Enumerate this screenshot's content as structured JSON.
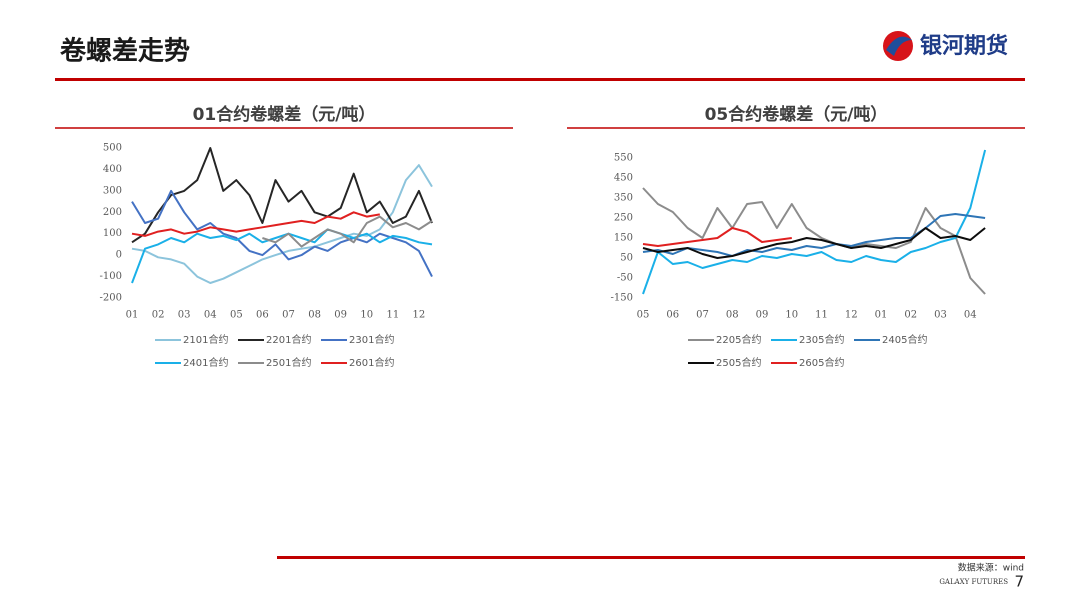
{
  "page": {
    "title": "卷螺差走势",
    "logo": "银河期货",
    "source": "数据来源：wind",
    "footer": "GALAXY FUTURES",
    "page_number": "7"
  },
  "chart_data": [
    {
      "type": "line",
      "title": "01合约卷螺差（元/吨）",
      "categories": [
        "01",
        null,
        "02",
        null,
        "03",
        null,
        "04",
        null,
        "05",
        null,
        "06",
        null,
        "07",
        null,
        "08",
        null,
        "09",
        null,
        "10",
        null,
        "11",
        null,
        "12",
        null
      ],
      "ylim": [
        -200,
        500
      ],
      "yticks": [
        -200,
        -100,
        0,
        100,
        200,
        300,
        400,
        500
      ],
      "grid": false,
      "series": [
        {
          "name": "2101合约",
          "color": "#8cc4dc",
          "values": [
            30,
            20,
            -10,
            -20,
            -40,
            -100,
            -130,
            -110,
            -80,
            -50,
            -20,
            0,
            20,
            30,
            40,
            60,
            80,
            100,
            90,
            120,
            200,
            350,
            420,
            320
          ]
        },
        {
          "name": "2201合约",
          "color": "#262626",
          "values": [
            60,
            100,
            200,
            280,
            300,
            350,
            500,
            300,
            350,
            280,
            150,
            350,
            250,
            300,
            200,
            180,
            220,
            380,
            200,
            250,
            150,
            180,
            300,
            150
          ]
        },
        {
          "name": "2301合约",
          "color": "#4472c4",
          "values": [
            250,
            150,
            170,
            300,
            200,
            120,
            150,
            100,
            80,
            20,
            0,
            50,
            -20,
            0,
            40,
            20,
            60,
            80,
            60,
            100,
            80,
            60,
            20,
            -100
          ]
        },
        {
          "name": "2401合约",
          "color": "#1ab0e8",
          "values": [
            -130,
            30,
            50,
            80,
            60,
            100,
            80,
            90,
            70,
            100,
            60,
            80,
            100,
            80,
            60,
            120,
            100,
            80,
            100,
            60,
            90,
            80,
            60,
            50
          ]
        },
        {
          "name": "2501合约",
          "color": "#8c8c8c",
          "values": [
            null,
            null,
            null,
            null,
            null,
            null,
            null,
            null,
            null,
            null,
            80,
            60,
            100,
            40,
            80,
            120,
            100,
            60,
            150,
            180,
            130,
            150,
            120,
            160
          ]
        },
        {
          "name": "2601合约",
          "color": "#e02020",
          "values": [
            100,
            90,
            110,
            120,
            100,
            110,
            130,
            120,
            110,
            120,
            130,
            140,
            150,
            160,
            150,
            180,
            170,
            200,
            180,
            190,
            null,
            null,
            null,
            null
          ]
        }
      ]
    },
    {
      "type": "line",
      "title": "05合约卷螺差（元/吨）",
      "categories": [
        "05",
        null,
        "06",
        null,
        "07",
        null,
        "08",
        null,
        "09",
        null,
        "10",
        null,
        "11",
        null,
        "12",
        null,
        "01",
        null,
        "02",
        null,
        "03",
        null,
        "04",
        null
      ],
      "ylim": [
        -150,
        600
      ],
      "yticks": [
        -150,
        -50,
        50,
        150,
        250,
        350,
        450,
        550
      ],
      "grid": false,
      "series": [
        {
          "name": "2205合约",
          "color": "#8c8c8c",
          "values": [
            400,
            320,
            280,
            200,
            150,
            300,
            200,
            320,
            330,
            200,
            320,
            200,
            150,
            120,
            100,
            120,
            110,
            100,
            130,
            300,
            200,
            160,
            -50,
            -130
          ]
        },
        {
          "name": "2305合约",
          "color": "#1ab0e8",
          "values": [
            -130,
            80,
            20,
            30,
            0,
            20,
            40,
            30,
            60,
            50,
            70,
            60,
            80,
            40,
            30,
            60,
            40,
            30,
            80,
            100,
            130,
            150,
            300,
            590
          ]
        },
        {
          "name": "2405合约",
          "color": "#2e75b6",
          "values": [
            80,
            90,
            70,
            100,
            90,
            80,
            60,
            90,
            80,
            100,
            90,
            110,
            100,
            120,
            110,
            130,
            140,
            150,
            150,
            200,
            260,
            270,
            260,
            250
          ]
        },
        {
          "name": "2505合约",
          "color": "#0d0d0d",
          "values": [
            100,
            80,
            90,
            100,
            70,
            50,
            60,
            80,
            100,
            120,
            130,
            150,
            140,
            120,
            100,
            110,
            100,
            120,
            140,
            200,
            150,
            160,
            140,
            200
          ]
        },
        {
          "name": "2605合约",
          "color": "#e02020",
          "values": [
            120,
            110,
            120,
            130,
            140,
            150,
            200,
            180,
            130,
            140,
            150,
            null,
            null,
            null,
            null,
            null,
            null,
            null,
            null,
            null,
            null,
            null,
            null,
            null
          ]
        }
      ]
    }
  ]
}
